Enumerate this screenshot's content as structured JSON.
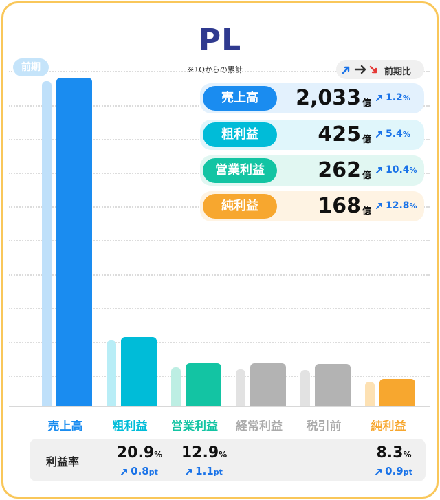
{
  "title": "PL",
  "subtitle": "※1Qからの累計",
  "prev_period_label": "前期",
  "legend": {
    "label": "前期比"
  },
  "chart_data": {
    "type": "bar",
    "categories": [
      "売上高",
      "粗利益",
      "営業利益",
      "経常利益",
      "税引前",
      "純利益"
    ],
    "series": [
      {
        "name": "前期",
        "values": [
          2009,
          403,
          237,
          225,
          222,
          149
        ]
      },
      {
        "values": [
          2033,
          425,
          262,
          262,
          261,
          168
        ]
      }
    ],
    "ylim": [
      0,
      2100
    ],
    "colors": {
      "current": [
        "#1a8cf0",
        "#00bcd8",
        "#13c4a3",
        "#b3b3b3",
        "#b3b3b3",
        "#f7a72f"
      ],
      "previous": [
        "#bfe0fa",
        "#b8edf6",
        "#bdeee3",
        "#e2e2e2",
        "#e2e2e2",
        "#fde1b3"
      ],
      "labels": [
        "#1a8cf0",
        "#00bcd8",
        "#13c4a3",
        "#aaaaaa",
        "#aaaaaa",
        "#f7a72f"
      ]
    }
  },
  "summary": [
    {
      "label": "売上高",
      "value": "2,033",
      "unit": "億",
      "change": "1.2",
      "pct": "%",
      "pill_color": "#1a8cf0",
      "bg_color": "#e3f1fd"
    },
    {
      "label": "粗利益",
      "value": "425",
      "unit": "億",
      "change": "5.4",
      "pct": "%",
      "pill_color": "#00bcd8",
      "bg_color": "#e0f6fb"
    },
    {
      "label": "営業利益",
      "value": "262",
      "unit": "億",
      "change": "10.4",
      "pct": "%",
      "pill_color": "#13c4a3",
      "bg_color": "#e1f7f2"
    },
    {
      "label": "純利益",
      "value": "168",
      "unit": "億",
      "change": "12.8",
      "pct": "%",
      "pill_color": "#f7a72f",
      "bg_color": "#fef3e3"
    }
  ],
  "margin_rate": {
    "label": "利益率",
    "items": [
      {
        "category": "粗利益",
        "value": "20.9",
        "pct": "%",
        "change": "0.8",
        "pt": "pt"
      },
      {
        "category": "営業利益",
        "value": "12.9",
        "pct": "%",
        "change": "1.1",
        "pt": "pt"
      },
      {
        "category": "純利益",
        "value": "8.3",
        "pct": "%",
        "change": "0.9",
        "pt": "pt"
      }
    ]
  }
}
